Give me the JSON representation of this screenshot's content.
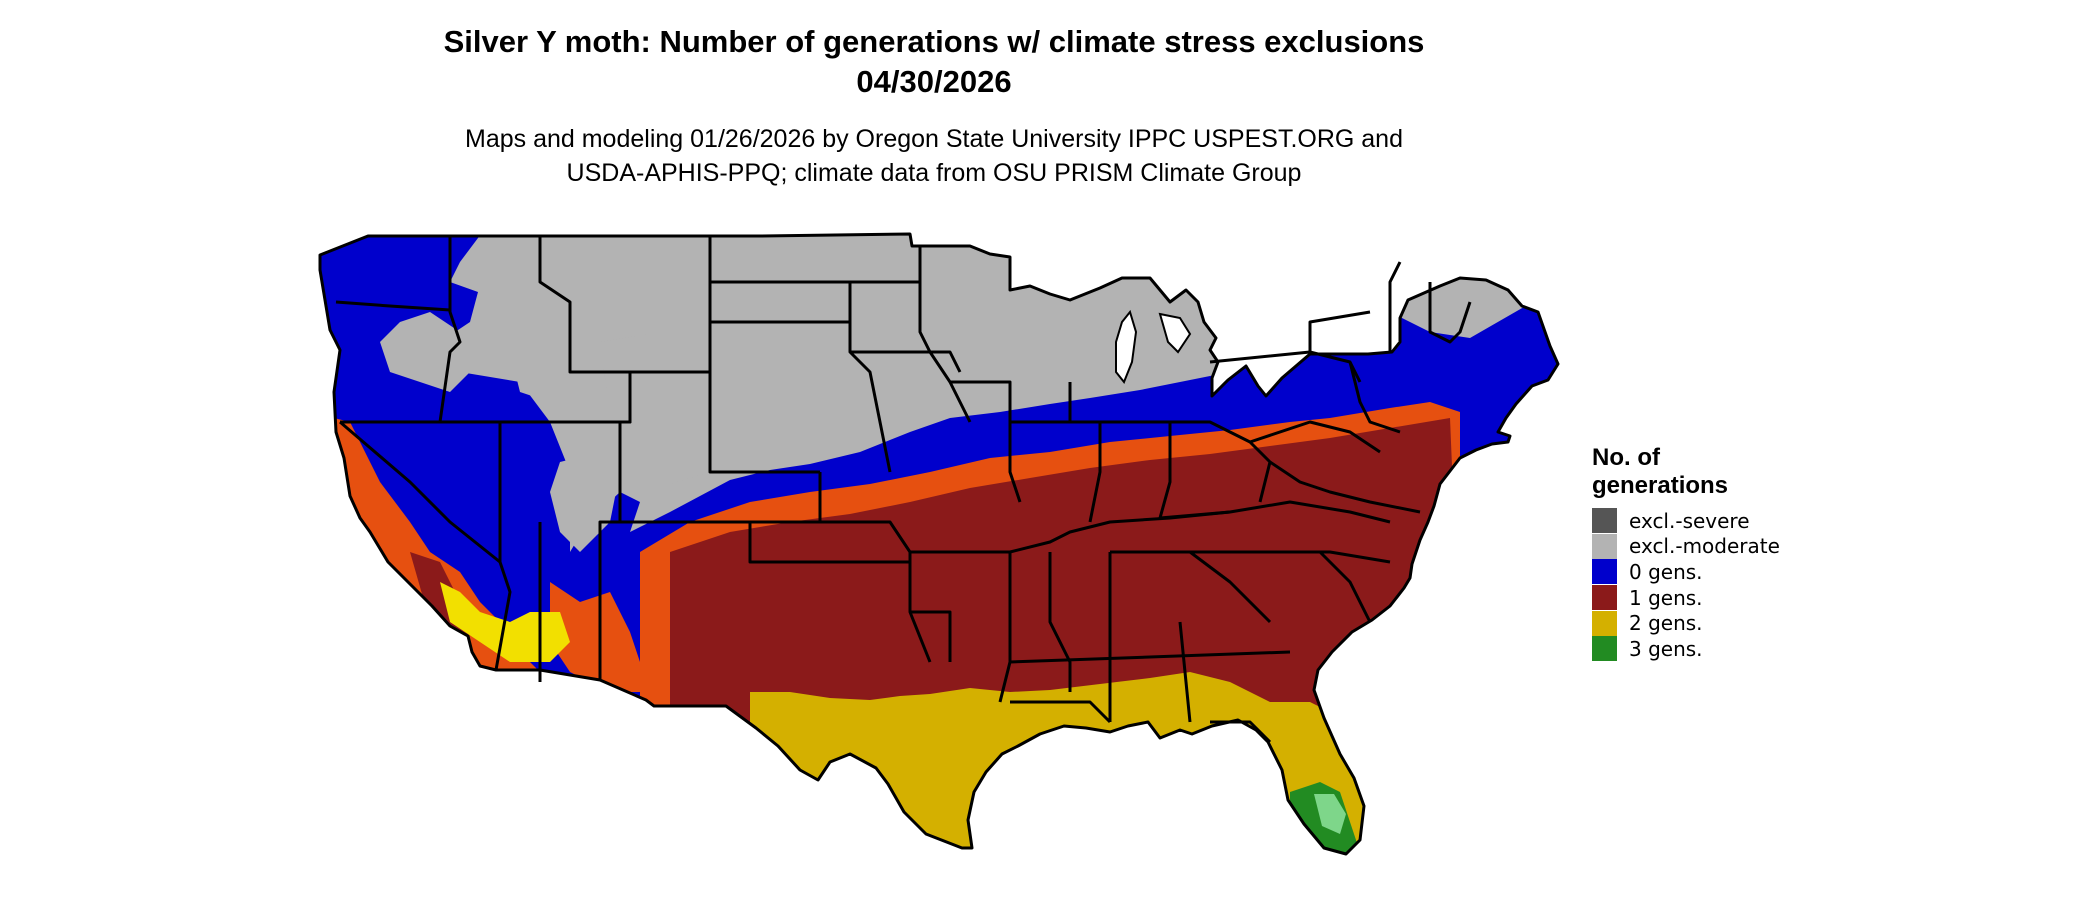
{
  "header": {
    "title_line1": "Silver Y moth: Number of generations w/ climate stress exclusions",
    "title_line2": "04/30/2026",
    "subtitle_line1": "Maps and modeling 01/26/2026 by Oregon State University IPPC USPEST.ORG and",
    "subtitle_line2": "USDA-APHIS-PPQ; climate data from OSU PRISM Climate Group"
  },
  "legend": {
    "title_line1": "No. of",
    "title_line2": "generations",
    "items": [
      {
        "label": "excl.-severe",
        "color": "#555555"
      },
      {
        "label": "excl.-moderate",
        "color": "#b3b3b3"
      },
      {
        "label": "0 gens.",
        "color": "#0000cc"
      },
      {
        "label": "1 gens.",
        "color": "#8b1a1a"
      },
      {
        "label": "2 gens.",
        "color": "#d4b000"
      },
      {
        "label": "3 gens.",
        "color": "#228b22"
      }
    ]
  },
  "map": {
    "region": "contiguous-united-states",
    "colors": {
      "excluded_moderate": "#b3b3b3",
      "zero_gens": "#0000cc",
      "one_gen": "#8b1a1a",
      "one_gen_edge": "#e65010",
      "two_gens": "#d4b000",
      "two_gens_bright": "#f2e000",
      "three_gens": "#228b22",
      "three_gens_light": "#7ed68a",
      "border": "#000000"
    }
  }
}
